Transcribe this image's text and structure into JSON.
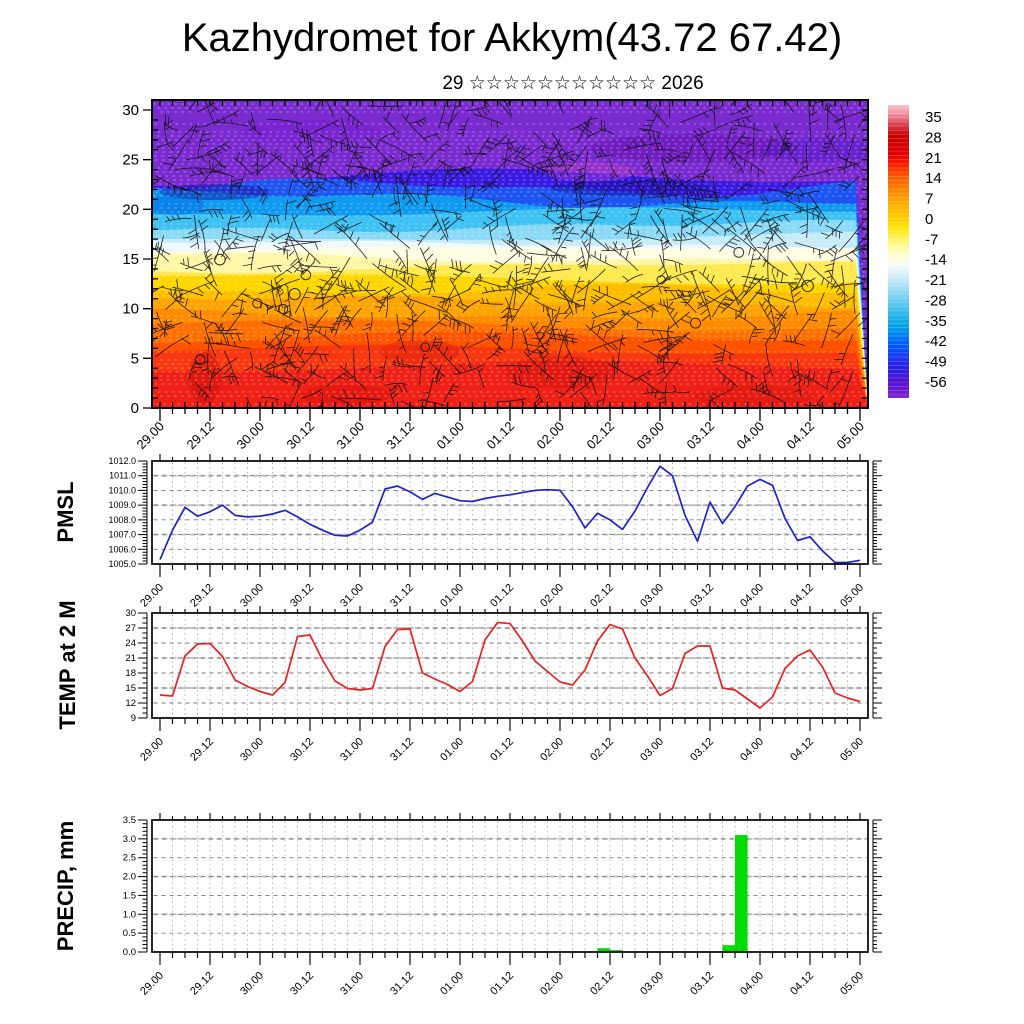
{
  "header": {
    "title": "Kazhydromet for Akkym(43.72 67.42)",
    "subtitle": "29 ☆☆☆☆☆☆☆☆☆☆☆ 2026"
  },
  "x_axis": {
    "labels": [
      "29.00",
      "29.12",
      "30.00",
      "30.12",
      "31.00",
      "31.12",
      "01.00",
      "01.12",
      "02.00",
      "02.12",
      "03.00",
      "03.12",
      "04.00",
      "04.12",
      "05.00"
    ],
    "hours_total": 168,
    "hours_per_label": 12,
    "minor_tick_hours": 3
  },
  "chart_data": [
    {
      "id": "cross-section",
      "type": "heatmap",
      "title": "",
      "ylabel": "",
      "ylim": [
        0,
        31
      ],
      "yticks": [
        "0",
        "5",
        "10",
        "15",
        "20",
        "25",
        "30"
      ],
      "grid": false,
      "overlay": "wind-barbs, white dashed contours, station circles",
      "bands": [
        {
          "level": 31.0,
          "color": "#7A2BD0"
        },
        {
          "level": 23.3,
          "color": "#3A1AE0"
        },
        {
          "level": 22.2,
          "color": "#1E55F2"
        },
        {
          "level": 21.1,
          "color": "#0E9AF0"
        },
        {
          "level": 19.6,
          "color": "#3EC1F3"
        },
        {
          "level": 18.3,
          "color": "#8AD9F7"
        },
        {
          "level": 17.2,
          "color": "#C6ECFA"
        },
        {
          "level": 16.5,
          "color": "#EFF9FD"
        },
        {
          "level": 15.9,
          "color": "#FFFDE2"
        },
        {
          "level": 15.2,
          "color": "#FFF6A6"
        },
        {
          "level": 14.2,
          "color": "#FFE94E"
        },
        {
          "level": 13.1,
          "color": "#FFD600"
        },
        {
          "level": 11.9,
          "color": "#FFBD00"
        },
        {
          "level": 10.7,
          "color": "#FFA400"
        },
        {
          "level": 9.5,
          "color": "#FF8B00"
        },
        {
          "level": 8.3,
          "color": "#FF7000"
        },
        {
          "level": 7.1,
          "color": "#FF5300"
        },
        {
          "level": 5.7,
          "color": "#FA3810"
        },
        {
          "level": 4.1,
          "color": "#EF2015"
        }
      ],
      "colorbar": {
        "labels": [
          "35",
          "28",
          "21",
          "14",
          "7",
          "0",
          "-7",
          "-14",
          "-21",
          "-28",
          "-35",
          "-42",
          "-49",
          "-56"
        ],
        "gradient_top_to_bottom": [
          "#F7C2CC",
          "#EE8A98",
          "#D93B4C",
          "#C40000",
          "#D40000",
          "#E80000",
          "#FF2200",
          "#FF5500",
          "#FF7700",
          "#FF9900",
          "#FFB300",
          "#FFC900",
          "#FFE000",
          "#FFF04D",
          "#FFFA9E",
          "#FFFFD9",
          "#F2FAFD",
          "#CFEDF9",
          "#A5DFF6",
          "#7CD2F2",
          "#4FC3EE",
          "#1FB2EA",
          "#009FE8",
          "#0078F2",
          "#0050FF",
          "#1F36F2",
          "#2B1FE0",
          "#4A16D6",
          "#6712CF",
          "#7E2BD2"
        ]
      }
    },
    {
      "id": "pmsl",
      "type": "line",
      "title": "PMSL",
      "color": "#2222CC",
      "ylim": [
        1005,
        1012
      ],
      "ytick_labels": [
        "1005.0",
        "1006.0",
        "1007.0",
        "1008.0",
        "1009.0",
        "1010.0",
        "1011.0",
        "1012.0"
      ],
      "minor_per_major": 5,
      "step_hours": 3,
      "values": [
        1005.3,
        1007.3,
        1008.85,
        1008.25,
        1008.55,
        1009.0,
        1008.3,
        1008.2,
        1008.25,
        1008.4,
        1008.65,
        1008.2,
        1007.7,
        1007.3,
        1006.95,
        1006.9,
        1007.3,
        1007.85,
        1010.1,
        1010.3,
        1009.9,
        1009.4,
        1009.8,
        1009.55,
        1009.3,
        1009.25,
        1009.45,
        1009.6,
        1009.7,
        1009.85,
        1010.0,
        1010.05,
        1010.0,
        1008.9,
        1007.45,
        1008.45,
        1008.0,
        1007.35,
        1008.6,
        1010.2,
        1011.65,
        1011.0,
        1008.3,
        1006.55,
        1009.2,
        1007.75,
        1008.9,
        1010.3,
        1010.75,
        1010.35,
        1008.1,
        1006.6,
        1006.85,
        1005.9,
        1005.1,
        1005.1,
        1005.25
      ]
    },
    {
      "id": "temp2m",
      "type": "line",
      "title": "TEMP at 2 M",
      "color": "#E62222",
      "ylim": [
        9,
        30
      ],
      "ytick_labels": [
        "9",
        "12",
        "15",
        "18",
        "21",
        "24",
        "27",
        "30"
      ],
      "minor_per_major": 3,
      "step_hours": 3,
      "values": [
        13.6,
        13.4,
        21.4,
        23.8,
        23.9,
        21.3,
        16.6,
        15.3,
        14.3,
        13.6,
        16.1,
        25.3,
        25.6,
        20.6,
        16.4,
        14.9,
        14.6,
        14.9,
        23.3,
        26.7,
        26.8,
        18.0,
        16.8,
        15.7,
        14.3,
        16.3,
        24.6,
        28.1,
        27.9,
        24.4,
        20.4,
        18.3,
        16.2,
        15.6,
        18.6,
        24.4,
        27.7,
        26.8,
        21.0,
        17.4,
        13.5,
        14.9,
        21.9,
        23.4,
        23.4,
        15.0,
        14.6,
        12.8,
        11.0,
        13.2,
        18.9,
        21.4,
        22.6,
        19.2,
        14.0,
        13.0,
        12.3
      ]
    },
    {
      "id": "precip",
      "type": "bar",
      "title": "PRECIP, mm",
      "color": "#00DC00",
      "ylim": [
        0,
        3.5
      ],
      "ytick_labels": [
        "0.0",
        "0.5",
        "1.0",
        "1.5",
        "2.0",
        "2.5",
        "3.0",
        "3.5"
      ],
      "minor_per_major": 5,
      "step_hours": 3,
      "bars": [
        {
          "slot": 35,
          "value": 0.1
        },
        {
          "slot": 36,
          "value": 0.05
        },
        {
          "slot": 45,
          "value": 0.18
        },
        {
          "slot": 46,
          "value": 3.1
        }
      ]
    }
  ]
}
